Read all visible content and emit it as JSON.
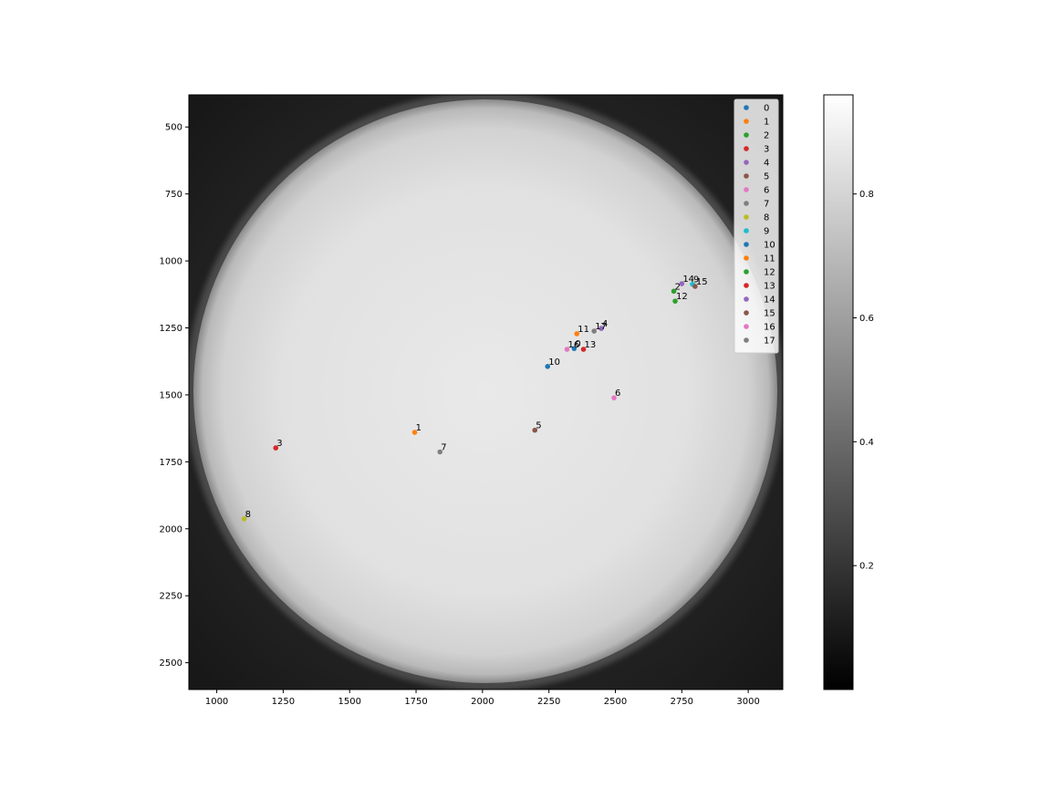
{
  "chart_data": {
    "type": "scatter",
    "title": "",
    "xlabel": "",
    "ylabel": "",
    "xlim": [
      895,
      3130
    ],
    "ylim": [
      2600,
      380
    ],
    "y_inverted": true,
    "grid": false,
    "legend_placement": "top-right",
    "background_image": "grayscale solar disk, centred near (2000, 1490), radius about 1100",
    "x_ticks": [
      "1000",
      "1250",
      "1500",
      "1750",
      "2000",
      "2250",
      "2500",
      "2750",
      "3000"
    ],
    "y_ticks": [
      "500",
      "750",
      "1000",
      "1250",
      "1500",
      "1750",
      "2000",
      "2250",
      "2500"
    ],
    "colorbar": {
      "ticks": [
        "0.2",
        "0.4",
        "0.6",
        "0.8"
      ],
      "range": [
        0.0,
        0.96
      ],
      "colormap": "gray"
    },
    "series": [
      {
        "name": "0",
        "x": 2345,
        "y": 1327,
        "label": "0",
        "color": "#1f77b4"
      },
      {
        "name": "1",
        "x": 1745,
        "y": 1640,
        "label": "1",
        "color": "#ff7f0e"
      },
      {
        "name": "2",
        "x": 2720,
        "y": 1113,
        "label": "2",
        "color": "#2ca02c"
      },
      {
        "name": "3",
        "x": 1222,
        "y": 1698,
        "label": "3",
        "color": "#d62728"
      },
      {
        "name": "4",
        "x": 2447,
        "y": 1252,
        "label": "4",
        "color": "#9467bd"
      },
      {
        "name": "5",
        "x": 2197,
        "y": 1632,
        "label": "5",
        "color": "#8c564b"
      },
      {
        "name": "6",
        "x": 2495,
        "y": 1511,
        "label": "6",
        "color": "#e377c2"
      },
      {
        "name": "7",
        "x": 1840,
        "y": 1713,
        "label": "7",
        "color": "#7f7f7f"
      },
      {
        "name": "8",
        "x": 1103,
        "y": 1963,
        "label": "8",
        "color": "#bcbd22"
      },
      {
        "name": "9",
        "x": 2790,
        "y": 1087,
        "label": "9",
        "color": "#17becf"
      },
      {
        "name": "10",
        "x": 2245,
        "y": 1394,
        "label": "10",
        "color": "#1f77b4"
      },
      {
        "name": "11",
        "x": 2355,
        "y": 1272,
        "label": "11",
        "color": "#ff7f0e"
      },
      {
        "name": "12",
        "x": 2725,
        "y": 1150,
        "label": "12",
        "color": "#2ca02c"
      },
      {
        "name": "13",
        "x": 2380,
        "y": 1330,
        "label": "13",
        "color": "#d62728"
      },
      {
        "name": "14",
        "x": 2750,
        "y": 1085,
        "label": "14",
        "color": "#9467bd"
      },
      {
        "name": "15",
        "x": 2800,
        "y": 1095,
        "label": "15",
        "color": "#8c564b"
      },
      {
        "name": "16",
        "x": 2318,
        "y": 1330,
        "label": "16",
        "color": "#e377c2"
      },
      {
        "name": "17",
        "x": 2420,
        "y": 1262,
        "label": "17",
        "color": "#7f7f7f"
      }
    ]
  }
}
